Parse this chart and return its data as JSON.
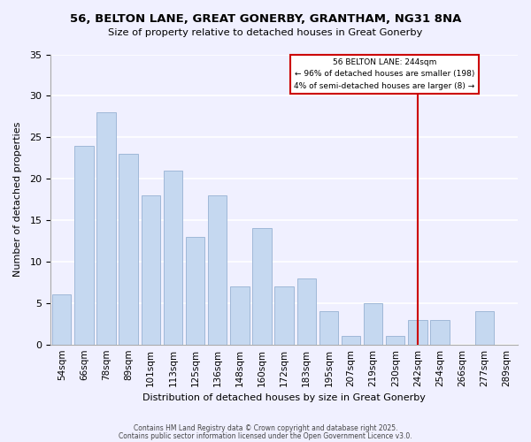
{
  "title1": "56, BELTON LANE, GREAT GONERBY, GRANTHAM, NG31 8NA",
  "title2": "Size of property relative to detached houses in Great Gonerby",
  "xlabel": "Distribution of detached houses by size in Great Gonerby",
  "ylabel": "Number of detached properties",
  "bar_labels": [
    "54sqm",
    "66sqm",
    "78sqm",
    "89sqm",
    "101sqm",
    "113sqm",
    "125sqm",
    "136sqm",
    "148sqm",
    "160sqm",
    "172sqm",
    "183sqm",
    "195sqm",
    "207sqm",
    "219sqm",
    "230sqm",
    "242sqm",
    "254sqm",
    "266sqm",
    "277sqm",
    "289sqm"
  ],
  "bar_values": [
    6,
    24,
    28,
    23,
    18,
    21,
    13,
    18,
    7,
    14,
    7,
    8,
    4,
    1,
    5,
    1,
    3,
    3,
    0,
    4,
    0
  ],
  "bar_color": "#c5d8f0",
  "bar_edge_color": "#a0b8d8",
  "vline_x": 16,
  "vline_color": "#cc0000",
  "annotation_title": "56 BELTON LANE: 244sqm",
  "annotation_line1": "← 96% of detached houses are smaller (198)",
  "annotation_line2": "4% of semi-detached houses are larger (8) →",
  "annotation_box_color": "#cc0000",
  "ylim": [
    0,
    35
  ],
  "yticks": [
    0,
    5,
    10,
    15,
    20,
    25,
    30,
    35
  ],
  "footnote1": "Contains HM Land Registry data © Crown copyright and database right 2025.",
  "footnote2": "Contains public sector information licensed under the Open Government Licence v3.0.",
  "bg_color": "#f0f0ff"
}
